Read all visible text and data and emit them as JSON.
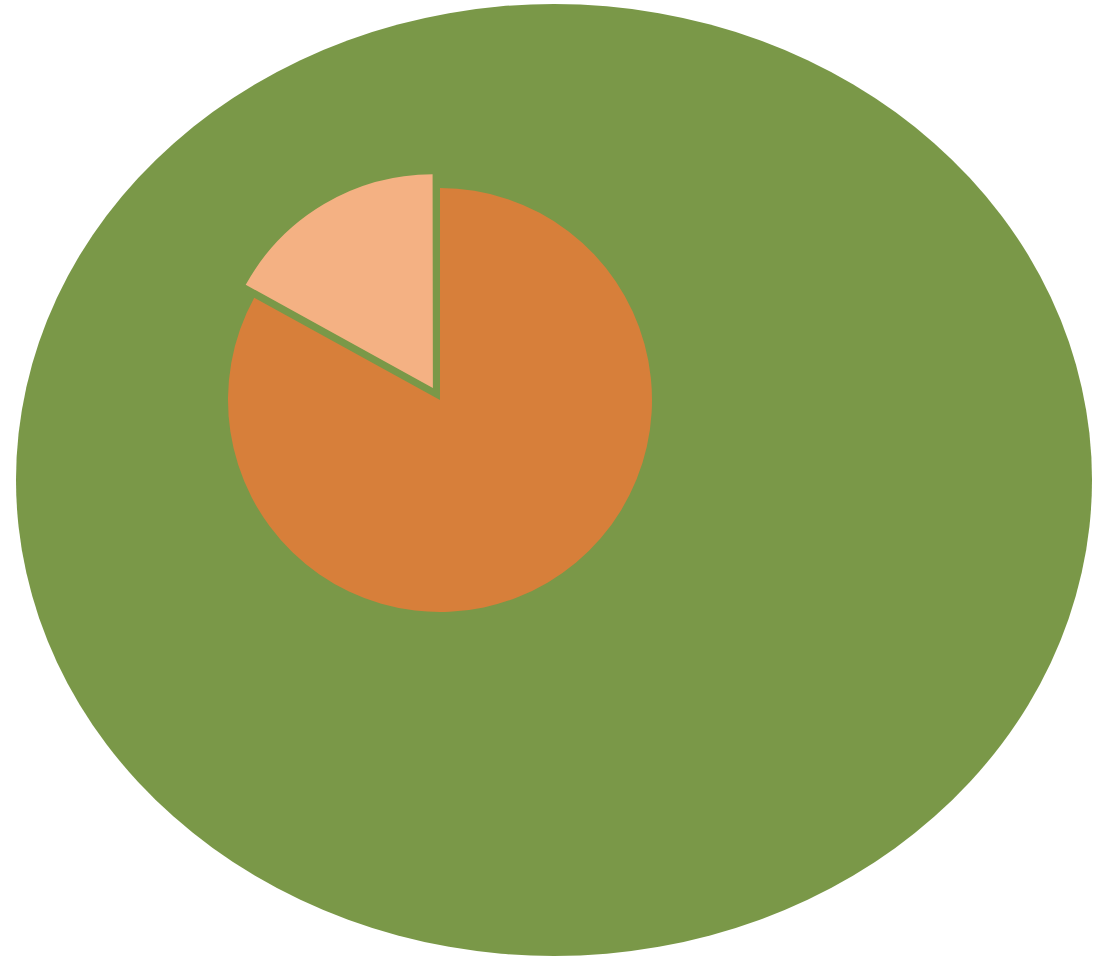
{
  "chart_data": {
    "type": "pie",
    "categories": [
      null,
      null
    ],
    "values": [
      83,
      17
    ],
    "colors": [
      "#d77f3a",
      "#f4b183"
    ],
    "legend": false
  }
}
